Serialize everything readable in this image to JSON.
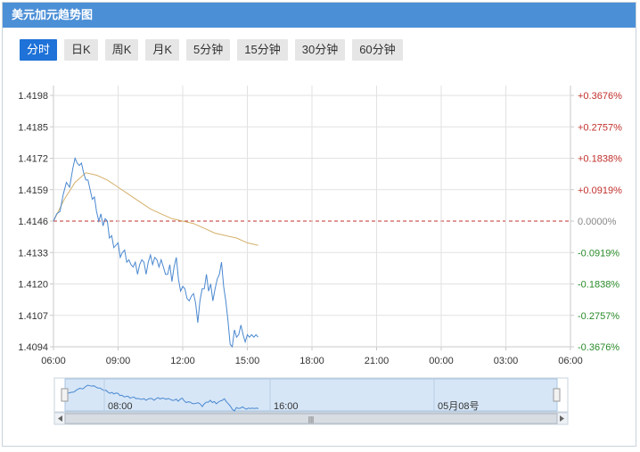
{
  "title": "美元加元趋势图",
  "tabs": [
    {
      "label": "分时",
      "active": true
    },
    {
      "label": "日K",
      "active": false
    },
    {
      "label": "周K",
      "active": false
    },
    {
      "label": "月K",
      "active": false
    },
    {
      "label": "5分钟",
      "active": false
    },
    {
      "label": "15分钟",
      "active": false
    },
    {
      "label": "30分钟",
      "active": false
    },
    {
      "label": "60分钟",
      "active": false
    }
  ],
  "colors": {
    "price_line": "#4a88d0",
    "avg_line": "#d4b06a",
    "baseline": "#c0302c",
    "up": "#c0302c",
    "down": "#2a8a2a",
    "title_bar": "#4b8fd6",
    "navigator_fill": "#d6e6f7"
  },
  "chart_data": {
    "type": "line",
    "base_price": 1.4146,
    "ylim": [
      1.4094,
      1.4198
    ],
    "y_ticks": [
      "1.4198",
      "1.4185",
      "1.4172",
      "1.4159",
      "1.4146",
      "1.4133",
      "1.4120",
      "1.4107",
      "1.4094"
    ],
    "pct_ticks": [
      "+0.3676%",
      "+0.2757%",
      "+0.1838%",
      "+0.0919%",
      "0.0000%",
      "-0.0919%",
      "-0.1838%",
      "-0.2757%",
      "-0.3676%"
    ],
    "x_ticks": [
      "06:00",
      "09:00",
      "12:00",
      "15:00",
      "18:00",
      "21:00",
      "00:00",
      "03:00",
      "06:00"
    ],
    "x_range_hours": [
      0,
      24
    ],
    "series": [
      {
        "key": "price",
        "x": [
          0.0,
          0.15,
          0.3,
          0.45,
          0.6,
          0.75,
          0.9,
          1.0,
          1.1,
          1.2,
          1.3,
          1.4,
          1.5,
          1.6,
          1.7,
          1.8,
          1.9,
          2.0,
          2.1,
          2.2,
          2.3,
          2.4,
          2.5,
          2.6,
          2.7,
          2.8,
          2.9,
          3.0,
          3.1,
          3.2,
          3.3,
          3.4,
          3.5,
          3.6,
          3.7,
          3.8,
          3.9,
          4.0,
          4.1,
          4.2,
          4.3,
          4.4,
          4.5,
          4.6,
          4.7,
          4.8,
          4.9,
          5.0,
          5.1,
          5.2,
          5.3,
          5.4,
          5.5,
          5.6,
          5.7,
          5.8,
          5.9,
          6.0,
          6.1,
          6.2,
          6.3,
          6.4,
          6.5,
          6.6,
          6.7,
          6.8,
          6.9,
          7.0,
          7.1,
          7.2,
          7.3,
          7.4,
          7.5,
          7.6,
          7.7,
          7.8,
          7.9,
          8.0,
          8.1,
          8.2,
          8.3,
          8.4,
          8.5,
          8.6,
          8.7,
          8.8,
          8.9,
          9.0,
          9.1,
          9.2,
          9.3,
          9.4,
          9.5
        ],
        "y": [
          1.4146,
          1.4149,
          1.415,
          1.4157,
          1.4162,
          1.416,
          1.4168,
          1.4172,
          1.417,
          1.4169,
          1.417,
          1.4166,
          1.4163,
          1.4163,
          1.4159,
          1.4155,
          1.4156,
          1.415,
          1.4146,
          1.4149,
          1.4144,
          1.4147,
          1.4146,
          1.4139,
          1.414,
          1.4135,
          1.4136,
          1.4137,
          1.4131,
          1.4133,
          1.4134,
          1.4129,
          1.413,
          1.4128,
          1.4127,
          1.4129,
          1.4124,
          1.4128,
          1.413,
          1.4129,
          1.4124,
          1.4129,
          1.4132,
          1.4128,
          1.4131,
          1.413,
          1.4127,
          1.413,
          1.4127,
          1.4124,
          1.4124,
          1.4128,
          1.4121,
          1.4127,
          1.4131,
          1.4122,
          1.4117,
          1.4119,
          1.4118,
          1.4114,
          1.4113,
          1.4115,
          1.4116,
          1.4112,
          1.4104,
          1.4113,
          1.4118,
          1.4118,
          1.4124,
          1.4117,
          1.412,
          1.4113,
          1.4118,
          1.4122,
          1.4124,
          1.4129,
          1.4119,
          1.4113,
          1.4105,
          1.4095,
          1.409,
          1.4101,
          1.4098,
          1.4099,
          1.4103,
          1.4099,
          1.4096,
          1.4099,
          1.4098,
          1.4099,
          1.4098,
          1.4099,
          1.4098
        ]
      },
      {
        "key": "average",
        "x": [
          0.0,
          0.5,
          1.0,
          1.5,
          2.0,
          2.5,
          3.0,
          3.5,
          4.0,
          4.5,
          5.0,
          5.5,
          6.0,
          6.5,
          7.0,
          7.5,
          8.0,
          8.5,
          9.0,
          9.5
        ],
        "y": [
          1.4146,
          1.4155,
          1.4162,
          1.4166,
          1.4165,
          1.4163,
          1.416,
          1.4157,
          1.4154,
          1.4151,
          1.4149,
          1.4147,
          1.4146,
          1.4145,
          1.4143,
          1.4141,
          1.414,
          1.4139,
          1.4137,
          1.4136
        ]
      }
    ]
  },
  "navigator": {
    "labels": [
      "08:00",
      "16:00",
      "05月08号"
    ],
    "scroll_grip": "|||"
  }
}
